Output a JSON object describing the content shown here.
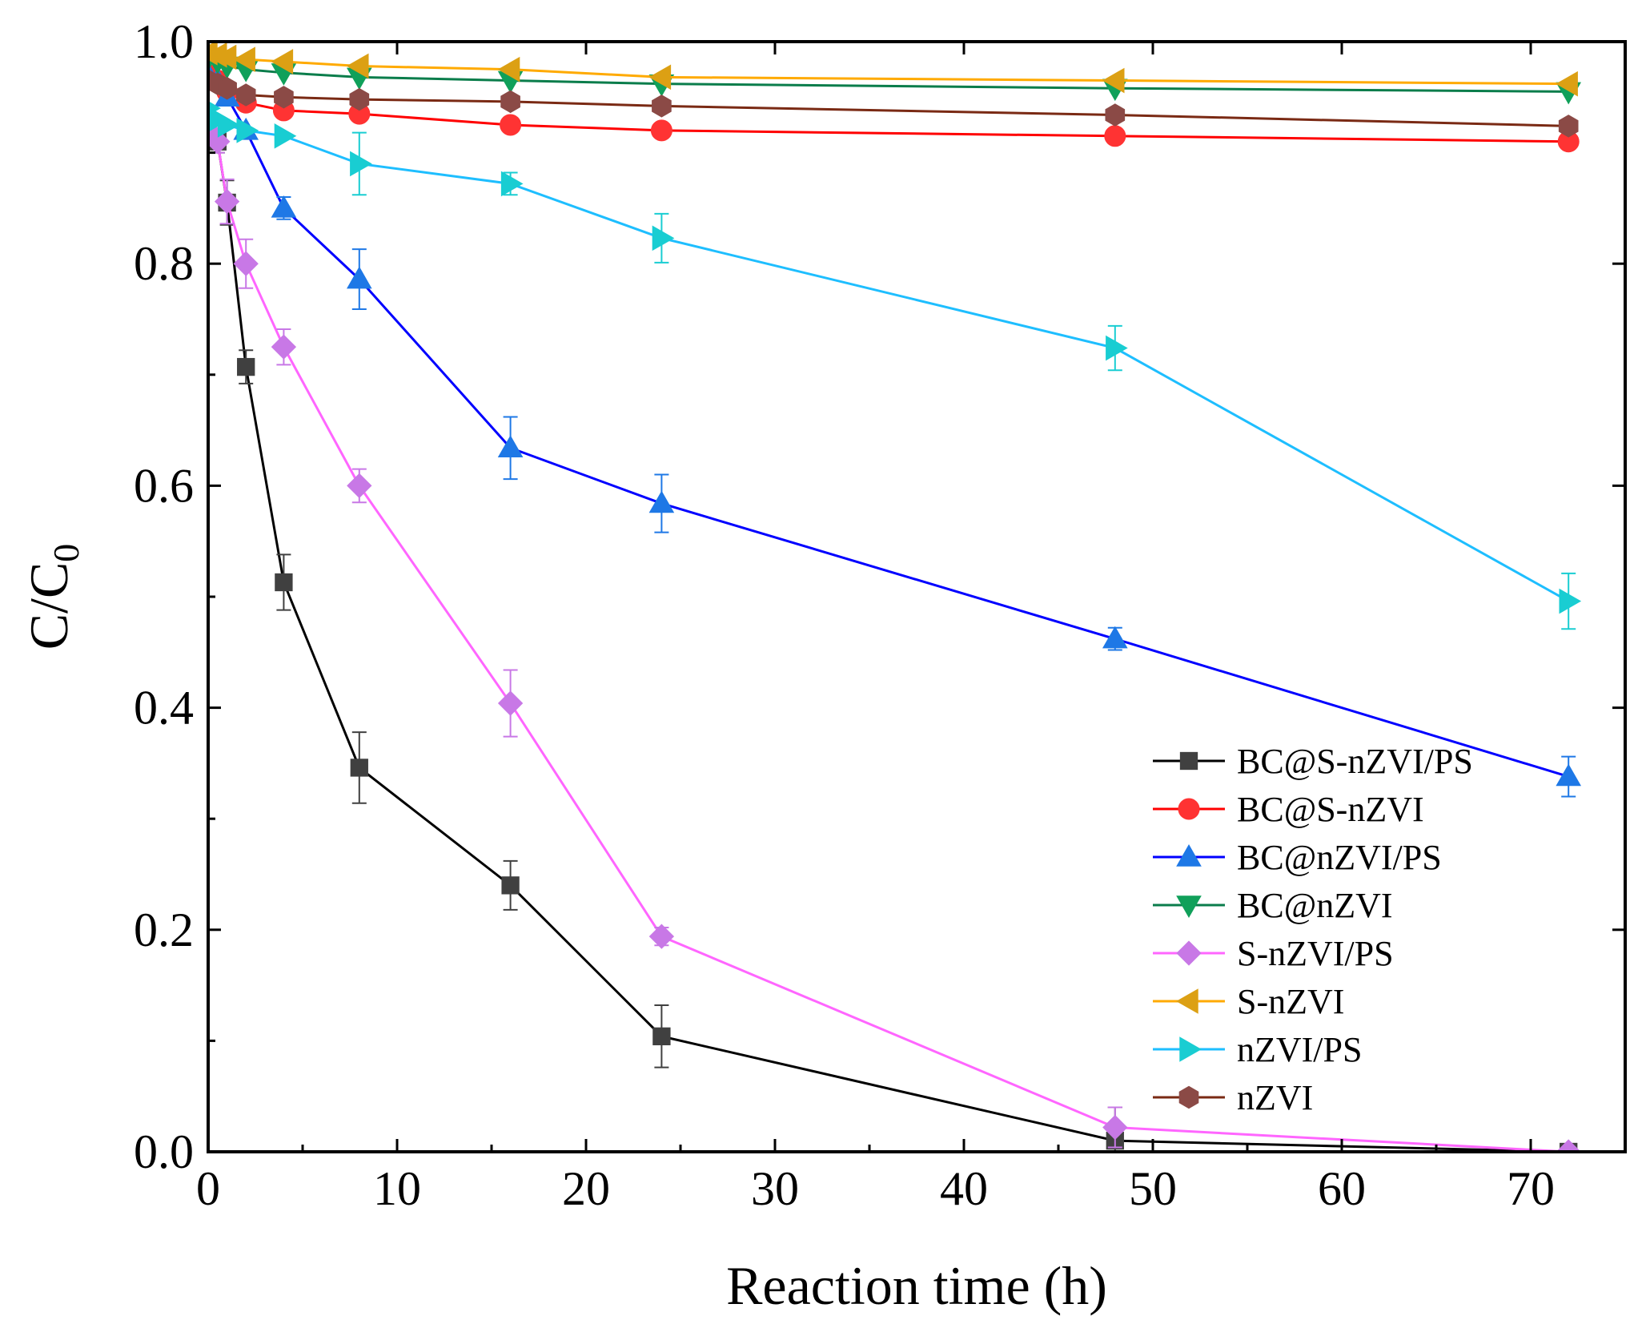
{
  "chart_data": {
    "type": "line",
    "title": "",
    "xlabel": "Reaction time (h)",
    "ylabel": "C/C",
    "ylabel_subscript": "0",
    "xlim": [
      0,
      75
    ],
    "ylim": [
      0.0,
      1.0
    ],
    "xticks": [
      0,
      10,
      20,
      30,
      40,
      50,
      60,
      70
    ],
    "xtick_labels": [
      "0",
      "10",
      "20",
      "30",
      "40",
      "50",
      "60",
      "70"
    ],
    "yticks": [
      0.0,
      0.2,
      0.4,
      0.6,
      0.8,
      1.0
    ],
    "ytick_labels": [
      "0.0",
      "0.2",
      "0.4",
      "0.6",
      "0.8",
      "1.0"
    ],
    "grid": false,
    "legend_position": "bottom-right",
    "x": [
      0,
      0.5,
      1,
      2,
      4,
      8,
      16,
      24,
      48,
      72
    ],
    "series": [
      {
        "name": "BC@S-nZVI/PS",
        "color": "#000000",
        "marker_color": "#404040",
        "marker": "square",
        "values": [
          0.92,
          0.91,
          0.855,
          0.707,
          0.513,
          0.346,
          0.24,
          0.104,
          0.01,
          0.0
        ],
        "errors": [
          0.01,
          0.01,
          0.02,
          0.015,
          0.025,
          0.032,
          0.022,
          0.028,
          0.03,
          0.004
        ]
      },
      {
        "name": "BC@S-nZVI",
        "color": "#ff0000",
        "marker_color": "#ff3333",
        "marker": "circle",
        "values": [
          0.97,
          0.965,
          0.955,
          0.945,
          0.938,
          0.935,
          0.925,
          0.92,
          0.915,
          0.91
        ],
        "errors": [
          0.005,
          0.005,
          0.005,
          0.005,
          0.005,
          0.005,
          0.005,
          0.005,
          0.005,
          0.005
        ]
      },
      {
        "name": "BC@nZVI/PS",
        "color": "#0000ff",
        "marker_color": "#1e78e6",
        "marker": "triangle-up",
        "values": [
          0.97,
          0.965,
          0.95,
          0.92,
          0.85,
          0.786,
          0.634,
          0.584,
          0.462,
          0.338
        ],
        "errors": [
          0.005,
          0.005,
          0.005,
          0.005,
          0.01,
          0.027,
          0.028,
          0.026,
          0.01,
          0.018
        ]
      },
      {
        "name": "BC@nZVI",
        "color": "#0a7d4b",
        "marker_color": "#10a05a",
        "marker": "triangle-down",
        "values": [
          0.985,
          0.982,
          0.978,
          0.975,
          0.972,
          0.968,
          0.965,
          0.962,
          0.958,
          0.955
        ],
        "errors": [
          0.004,
          0.004,
          0.004,
          0.004,
          0.004,
          0.004,
          0.004,
          0.004,
          0.004,
          0.004
        ]
      },
      {
        "name": "S-nZVI/PS",
        "color": "#ff66ff",
        "marker_color": "#c878e6",
        "marker": "diamond",
        "values": [
          0.92,
          0.91,
          0.856,
          0.8,
          0.725,
          0.6,
          0.404,
          0.194,
          0.022,
          0.0
        ],
        "errors": [
          0.01,
          0.01,
          0.02,
          0.022,
          0.016,
          0.015,
          0.03,
          0.008,
          0.018,
          0.003
        ]
      },
      {
        "name": "S-nZVI",
        "color": "#ffaa00",
        "marker_color": "#dca014",
        "marker": "triangle-left",
        "values": [
          0.99,
          0.988,
          0.986,
          0.984,
          0.982,
          0.978,
          0.975,
          0.968,
          0.965,
          0.962
        ],
        "errors": [
          0.003,
          0.003,
          0.003,
          0.003,
          0.003,
          0.003,
          0.003,
          0.003,
          0.003,
          0.003
        ]
      },
      {
        "name": "nZVI/PS",
        "color": "#1ebeff",
        "marker_color": "#19cdd2",
        "marker": "triangle-right",
        "values": [
          0.94,
          0.93,
          0.925,
          0.92,
          0.915,
          0.89,
          0.872,
          0.823,
          0.724,
          0.496
        ],
        "errors": [
          0.005,
          0.005,
          0.005,
          0.005,
          0.006,
          0.028,
          0.01,
          0.022,
          0.02,
          0.025
        ]
      },
      {
        "name": "nZVI",
        "color": "#7a2a14",
        "marker_color": "#8b4a46",
        "marker": "hexagon",
        "values": [
          0.965,
          0.962,
          0.958,
          0.952,
          0.95,
          0.948,
          0.946,
          0.942,
          0.934,
          0.924
        ],
        "errors": [
          0.004,
          0.004,
          0.004,
          0.004,
          0.004,
          0.004,
          0.004,
          0.004,
          0.004,
          0.004
        ]
      }
    ]
  }
}
